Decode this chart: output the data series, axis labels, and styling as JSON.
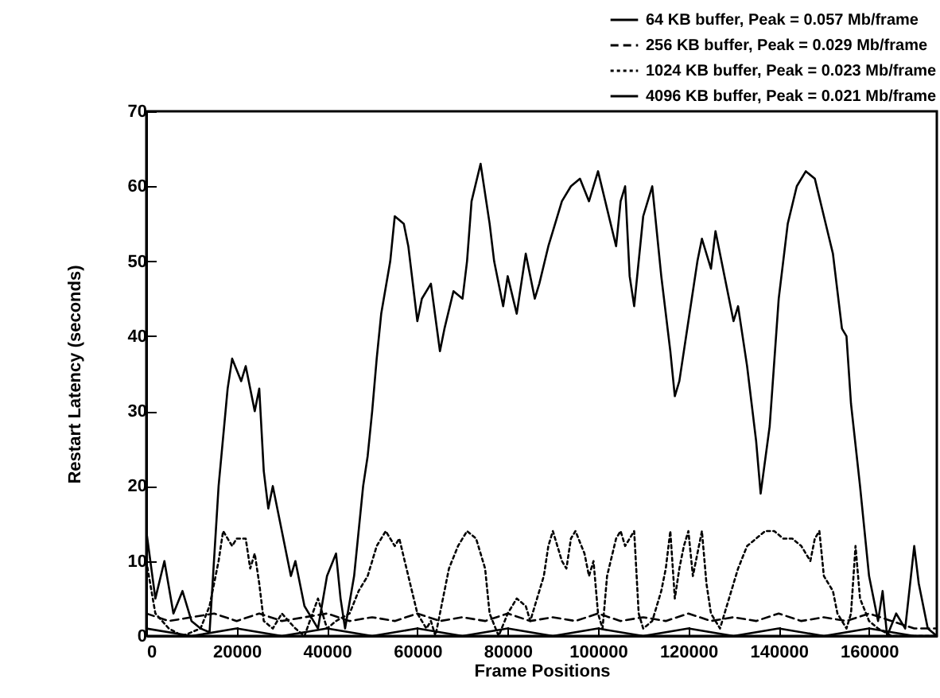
{
  "chart_data": {
    "type": "line",
    "xlabel": "Frame Positions",
    "ylabel": "Restart Latency (seconds)",
    "xlim": [
      0,
      175000
    ],
    "ylim": [
      0,
      70
    ],
    "xticks": [
      0,
      20000,
      40000,
      60000,
      80000,
      100000,
      120000,
      140000,
      160000
    ],
    "yticks": [
      0,
      10,
      20,
      30,
      40,
      50,
      60,
      70
    ],
    "grid": false,
    "legend": "top right",
    "series": [
      {
        "name": "64 KB buffer, Peak = 0.057 Mb/frame",
        "color": "#000000",
        "line_style": "solid",
        "x": [
          0,
          2000,
          4000,
          6000,
          8000,
          10000,
          12000,
          14000,
          16000,
          18000,
          19000,
          21000,
          22000,
          24000,
          25000,
          26000,
          27000,
          28000,
          30000,
          32000,
          33000,
          35000,
          37000,
          38000,
          40000,
          42000,
          43000,
          44000,
          46000,
          48000,
          49000,
          50000,
          51000,
          52000,
          54000,
          55000,
          57000,
          58000,
          60000,
          61000,
          63000,
          65000,
          66000,
          68000,
          70000,
          71000,
          72000,
          74000,
          76000,
          77000,
          79000,
          80000,
          82000,
          84000,
          86000,
          87000,
          89000,
          90000,
          92000,
          94000,
          96000,
          98000,
          100000,
          102000,
          104000,
          105000,
          106000,
          107000,
          108000,
          110000,
          112000,
          114000,
          116000,
          117000,
          118000,
          120000,
          122000,
          123000,
          125000,
          126000,
          128000,
          130000,
          131000,
          133000,
          135000,
          136000,
          138000,
          140000,
          142000,
          144000,
          146000,
          148000,
          150000,
          152000,
          153000,
          154000,
          155000,
          156000,
          158000,
          160000,
          162000,
          163000,
          164000,
          166000,
          168000,
          170000,
          171000,
          173000,
          175000
        ],
        "values": [
          14,
          5,
          10,
          3,
          6,
          2,
          1,
          0.5,
          20,
          33,
          37,
          34,
          36,
          30,
          33,
          22,
          17,
          20,
          14,
          8,
          10,
          4,
          2,
          1,
          8,
          11,
          5,
          1,
          8,
          20,
          24,
          30,
          37,
          43,
          50,
          56,
          55,
          52,
          42,
          45,
          47,
          38,
          41,
          46,
          45,
          50,
          58,
          63,
          55,
          50,
          44,
          48,
          43,
          51,
          45,
          47,
          52,
          54,
          58,
          60,
          61,
          58,
          62,
          57,
          52,
          58,
          60,
          48,
          44,
          56,
          60,
          48,
          38,
          32,
          34,
          42,
          50,
          53,
          49,
          54,
          48,
          42,
          44,
          36,
          26,
          19,
          28,
          45,
          55,
          60,
          62,
          61,
          56,
          51,
          46,
          41,
          40,
          31,
          20,
          8,
          2,
          6,
          0,
          3,
          1,
          12,
          7,
          1,
          0
        ]
      },
      {
        "name": "256 KB buffer, Peak = 0.029 Mb/frame",
        "color": "#000000",
        "line_style": "dashed",
        "x": [
          0,
          5000,
          10000,
          15000,
          20000,
          25000,
          30000,
          35000,
          40000,
          45000,
          50000,
          55000,
          60000,
          65000,
          70000,
          75000,
          80000,
          85000,
          90000,
          95000,
          100000,
          105000,
          110000,
          115000,
          120000,
          125000,
          130000,
          135000,
          140000,
          145000,
          150000,
          155000,
          160000,
          165000,
          170000,
          175000
        ],
        "values": [
          3,
          2,
          2.5,
          3,
          2,
          3,
          2,
          2.5,
          3,
          2,
          2.5,
          2,
          3,
          2,
          2.5,
          2,
          3,
          2,
          2.5,
          2,
          3,
          2,
          2.5,
          2,
          3,
          2,
          2.5,
          2,
          3,
          2,
          2.5,
          2,
          3,
          2,
          1,
          1
        ]
      },
      {
        "name": "1024 KB buffer, Peak = 0.023 Mb/frame",
        "color": "#000000",
        "line_style": "dotted",
        "x": [
          0,
          2000,
          5000,
          8000,
          12000,
          14000,
          16000,
          17000,
          19000,
          20000,
          22000,
          23000,
          24000,
          25000,
          26000,
          28000,
          30000,
          33000,
          35000,
          38000,
          40000,
          42000,
          45000,
          47000,
          49000,
          51000,
          53000,
          55000,
          56000,
          58000,
          60000,
          62000,
          63000,
          64000,
          67000,
          69000,
          71000,
          73000,
          75000,
          76000,
          78000,
          80000,
          82000,
          84000,
          85000,
          86000,
          88000,
          89000,
          90000,
          91000,
          92000,
          93000,
          94000,
          95000,
          97000,
          98000,
          99000,
          100000,
          101000,
          102000,
          104000,
          105000,
          106000,
          107000,
          108000,
          109000,
          110000,
          112000,
          114000,
          115000,
          116000,
          117000,
          118000,
          119000,
          120000,
          121000,
          122000,
          123000,
          124000,
          125000,
          127000,
          129000,
          131000,
          133000,
          135000,
          137000,
          139000,
          141000,
          143000,
          145000,
          147000,
          148000,
          149000,
          150000,
          152000,
          153000,
          155000,
          156000,
          157000,
          158000,
          160000,
          162000,
          165000,
          175000
        ],
        "values": [
          10,
          3,
          1,
          0,
          1,
          4,
          10,
          14,
          12,
          13,
          13,
          9,
          11,
          7,
          2,
          1,
          3,
          1,
          0,
          5,
          1,
          2,
          3,
          6,
          8,
          12,
          14,
          12,
          13,
          8,
          3,
          1,
          2,
          0,
          9,
          12,
          14,
          13,
          9,
          3,
          0,
          3,
          5,
          4,
          2,
          4,
          8,
          12,
          14,
          12,
          10,
          9,
          13,
          14,
          11,
          8,
          10,
          3,
          1,
          8,
          13,
          14,
          12,
          13,
          14,
          3,
          1,
          2,
          6,
          9,
          14,
          5,
          9,
          12,
          14,
          8,
          11,
          14,
          7,
          3,
          1,
          5,
          9,
          12,
          13,
          14,
          14,
          13,
          13,
          12,
          10,
          13,
          14,
          8,
          6,
          3,
          1,
          3,
          12,
          5,
          2,
          1,
          0,
          0
        ]
      },
      {
        "name": "4096 KB buffer, Peak = 0.021 Mb/frame",
        "color": "#000000",
        "line_style": "solid",
        "x": [
          0,
          10000,
          20000,
          30000,
          40000,
          50000,
          60000,
          70000,
          80000,
          90000,
          100000,
          110000,
          120000,
          130000,
          140000,
          150000,
          160000,
          170000,
          175000
        ],
        "values": [
          1,
          0,
          1,
          0,
          1,
          0,
          1,
          0,
          1,
          0,
          1,
          0,
          1,
          0,
          1,
          0,
          1,
          0,
          0
        ]
      }
    ]
  }
}
